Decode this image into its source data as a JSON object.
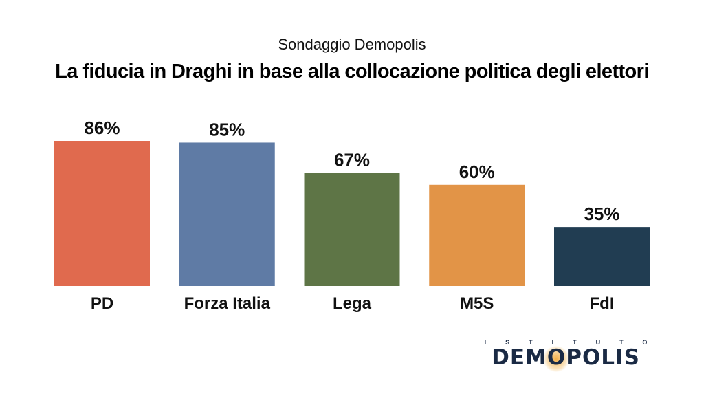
{
  "header": {
    "subtitle": "Sondaggio Demopolis",
    "title": "La fiducia in Draghi in base alla collocazione politica degli elettori"
  },
  "chart_data": {
    "type": "bar",
    "categories": [
      "PD",
      "Forza Italia",
      "Lega",
      "M5S",
      "FdI"
    ],
    "values": [
      86,
      85,
      67,
      60,
      35
    ],
    "value_labels": [
      "86%",
      "85%",
      "67%",
      "60%",
      "35%"
    ],
    "colors": [
      "#E06A4E",
      "#5F7BA5",
      "#5E7546",
      "#E29447",
      "#213D52"
    ],
    "title": "La fiducia in Draghi in base alla collocazione politica degli elettori",
    "subtitle": "Sondaggio Demopolis",
    "ylim": [
      0,
      100
    ],
    "grid": false
  },
  "logo": {
    "top": "ISTITUTO",
    "main_left": "DEM",
    "main_o": "O",
    "main_right": "POLIS"
  }
}
